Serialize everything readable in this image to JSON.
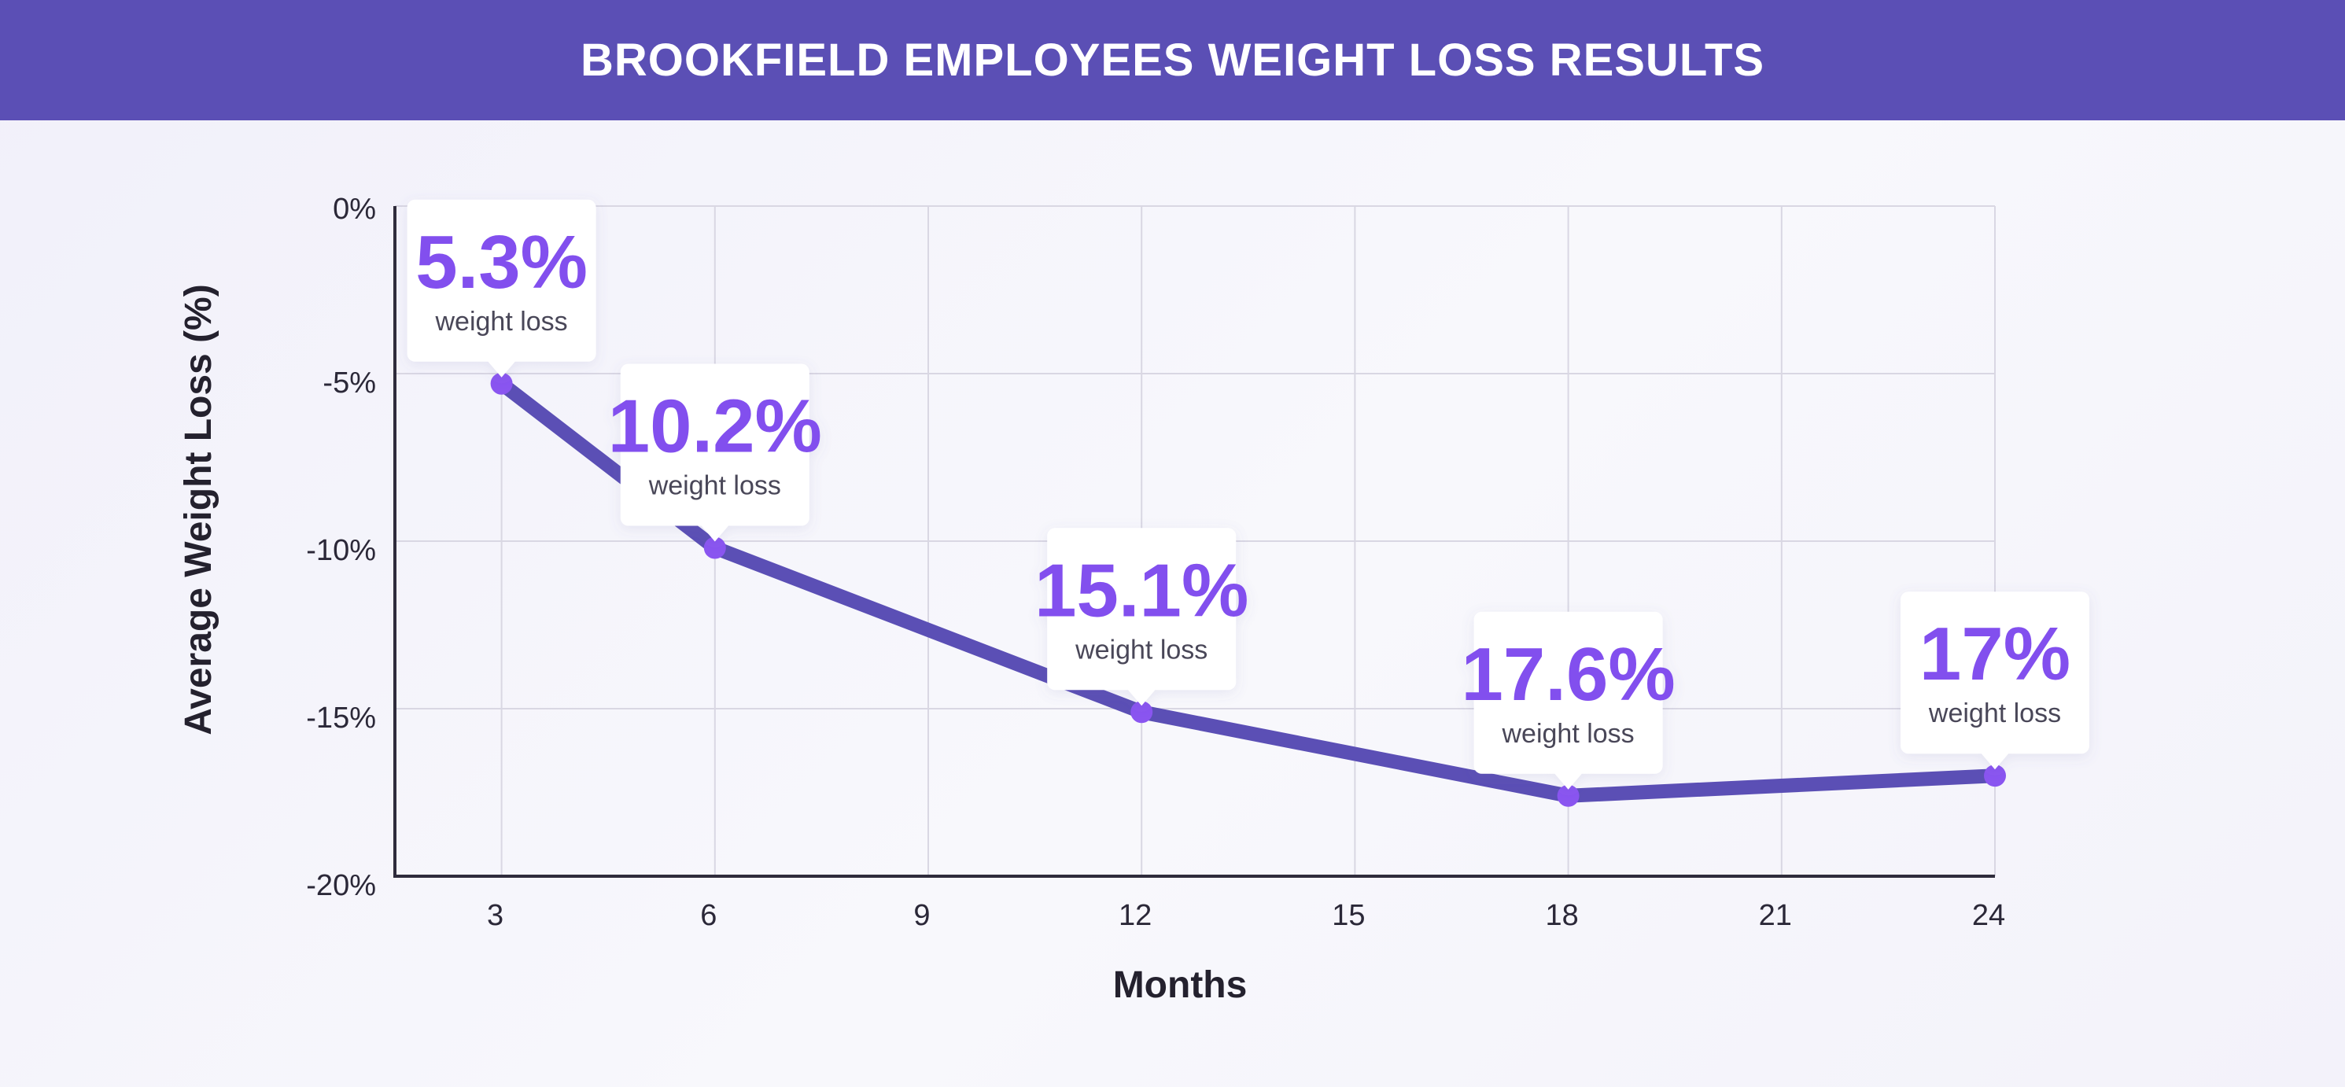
{
  "header": {
    "title": "BROOKFIELD EMPLOYEES WEIGHT LOSS RESULTS"
  },
  "colors": {
    "banner": "#5b4fb5",
    "line": "#5b4fb5",
    "point": "#8a55f0",
    "value_text": "#8250ee",
    "grid": "#d9d7e3",
    "axis": "#2f2c3c"
  },
  "chart_data": {
    "type": "line",
    "title": "BROOKFIELD EMPLOYEES WEIGHT LOSS RESULTS",
    "xlabel": "Months",
    "ylabel": "Average Weight Loss (%)",
    "x_ticks": [
      "3",
      "6",
      "9",
      "12",
      "15",
      "18",
      "21",
      "24"
    ],
    "y_ticks": [
      "0%",
      "-5%",
      "-10%",
      "-15%",
      "-20%"
    ],
    "xlim": [
      1.5,
      24
    ],
    "ylim": [
      -20,
      0
    ],
    "grid": true,
    "series": [
      {
        "x": [
          3,
          6,
          12,
          18,
          24
        ],
        "y": [
          -5.3,
          -10.2,
          -15.1,
          -17.6,
          -17.0
        ]
      }
    ],
    "annotations": [
      {
        "x": 3,
        "y": -5.3,
        "value": "5.3%",
        "label": "weight loss"
      },
      {
        "x": 6,
        "y": -10.2,
        "value": "10.2%",
        "label": "weight loss"
      },
      {
        "x": 12,
        "y": -15.1,
        "value": "15.1%",
        "label": "weight loss"
      },
      {
        "x": 18,
        "y": -17.6,
        "value": "17.6%",
        "label": "weight loss"
      },
      {
        "x": 24,
        "y": -17.0,
        "value": "17%",
        "label": "weight loss"
      }
    ]
  }
}
